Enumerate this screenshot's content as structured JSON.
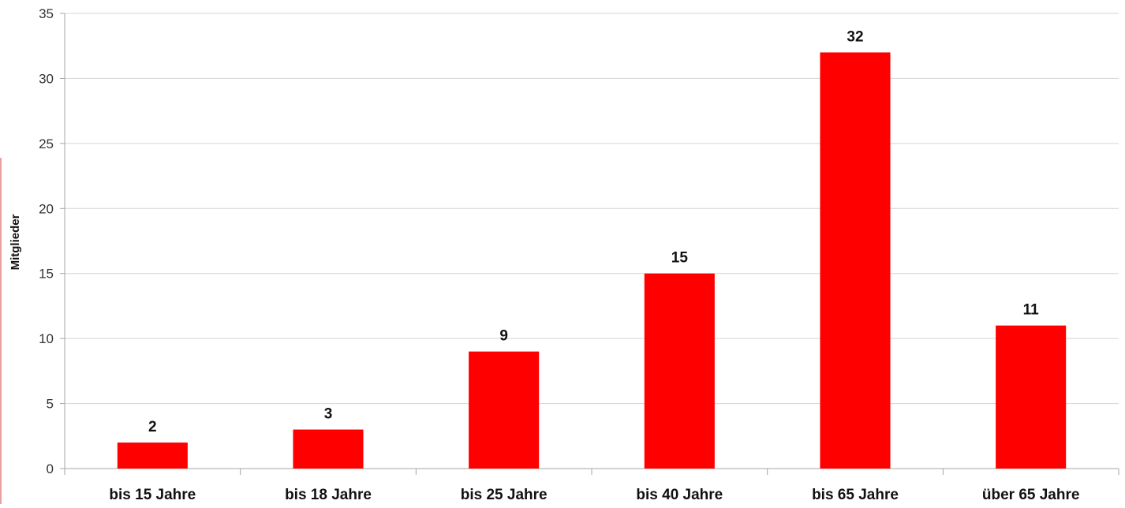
{
  "colors": {
    "bar": "#ff0000",
    "grid": "#d4d4d4",
    "axis": "#a6a6a6"
  },
  "chart_data": {
    "type": "bar",
    "title": "",
    "xlabel": "",
    "ylabel": "Mitglieder",
    "categories": [
      "bis 15 Jahre",
      "bis 18 Jahre",
      "bis 25 Jahre",
      "bis 40 Jahre",
      "bis 65 Jahre",
      "über 65 Jahre"
    ],
    "values": [
      2,
      3,
      9,
      15,
      32,
      11
    ],
    "ylim": [
      0,
      35
    ],
    "yticks": [
      0,
      5,
      10,
      15,
      20,
      25,
      30,
      35
    ],
    "grid": true,
    "data_labels": true,
    "legend": "none"
  }
}
